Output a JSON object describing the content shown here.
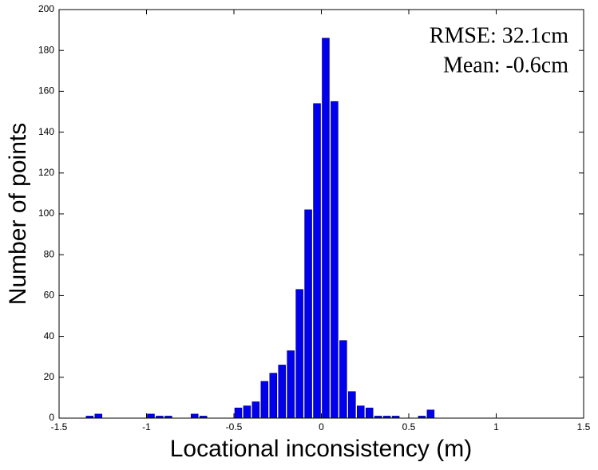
{
  "chart_data": {
    "type": "histogram",
    "xlabel": "Locational inconsistency (m)",
    "ylabel": "Number of points",
    "annotations": [
      "RMSE: 32.1cm",
      "Mean: -0.6cm"
    ],
    "bins": [
      -1.35,
      -1.3,
      -1.25,
      -1.2,
      -1.15,
      -1.1,
      -1.05,
      -1.0,
      -0.95,
      -0.9,
      -0.85,
      -0.8,
      -0.75,
      -0.7,
      -0.65,
      -0.6,
      -0.55,
      -0.5,
      -0.45,
      -0.4,
      -0.35,
      -0.3,
      -0.25,
      -0.2,
      -0.15,
      -0.1,
      -0.05,
      0,
      0.05,
      0.1,
      0.15,
      0.2,
      0.25,
      0.3,
      0.35,
      0.4,
      0.45,
      0.5,
      0.55,
      0.6,
      0.65
    ],
    "values": [
      1,
      2,
      0,
      0,
      0,
      0,
      0,
      2,
      1,
      1,
      0,
      0,
      2,
      1,
      0,
      0,
      0,
      5,
      6,
      8,
      18,
      22,
      26,
      33,
      63,
      102,
      154,
      186,
      155,
      38,
      13,
      6,
      5,
      1,
      1,
      1,
      0,
      0,
      1,
      4
    ],
    "color": "#0000ee",
    "xlim": [
      -1.5,
      1.5
    ],
    "xticks": [
      -1.5,
      -1,
      -0.5,
      0,
      0.5,
      1,
      1.5
    ],
    "ylim": [
      0,
      200
    ],
    "yticks": [
      0,
      20,
      40,
      60,
      80,
      100,
      120,
      140,
      160,
      180,
      200
    ]
  }
}
